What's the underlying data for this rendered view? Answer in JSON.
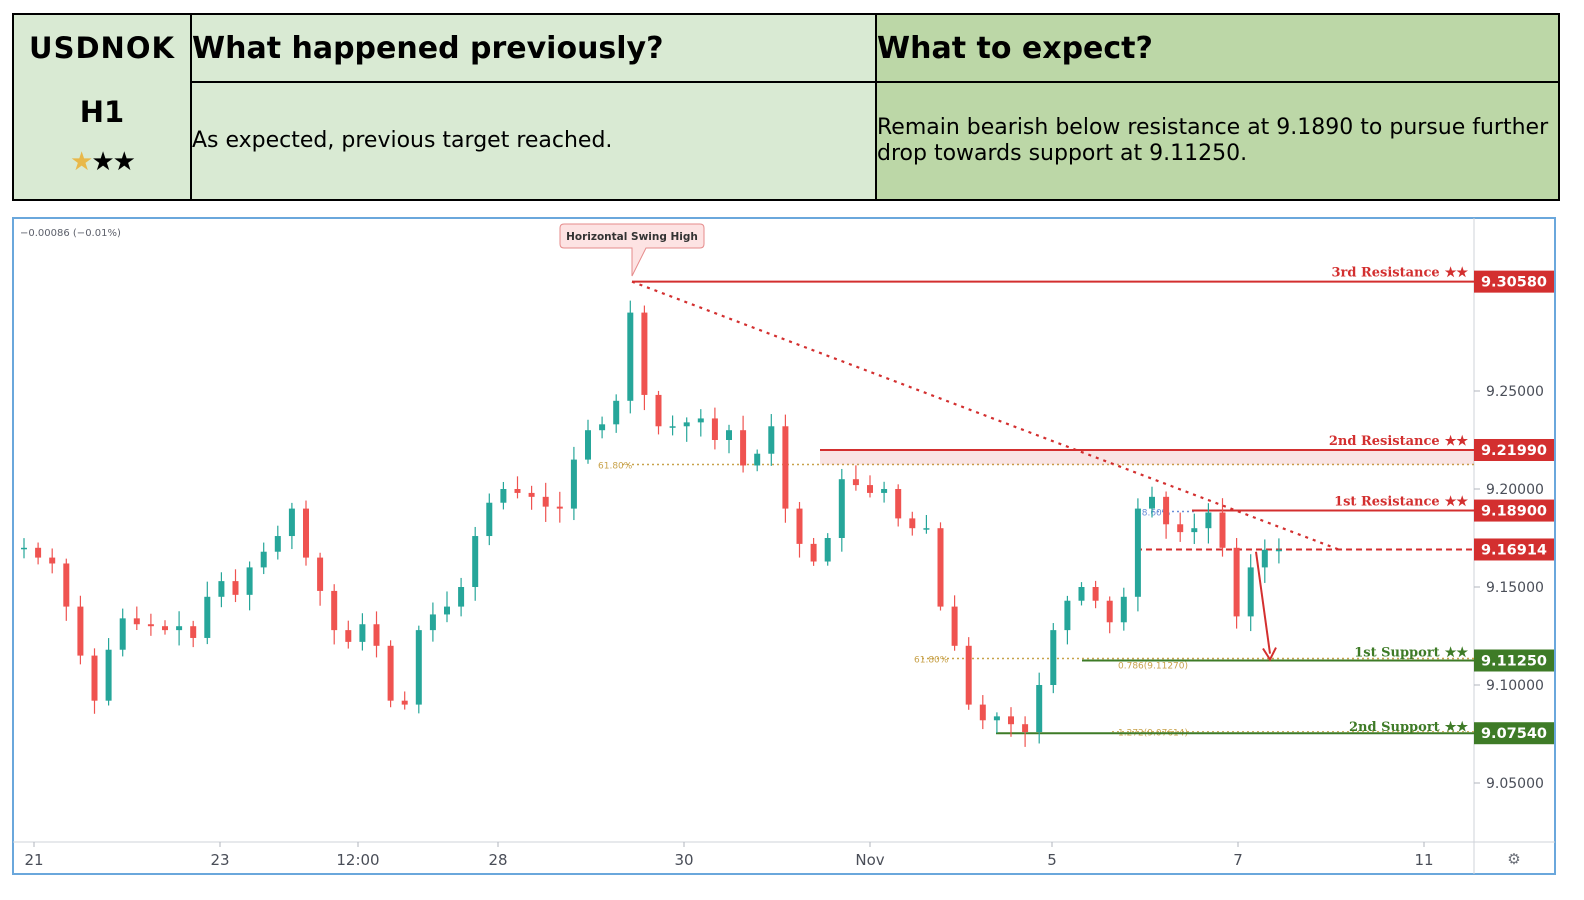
{
  "header": {
    "symbol": "USDNOK",
    "timeframe": "H1",
    "rating": {
      "filled": 1,
      "total": 3,
      "filled_color": "#e8b84a"
    },
    "previous_title": "What happened previously?",
    "previous_text": "As expected, previous target reached.",
    "expect_title": "What to expect?",
    "expect_text": "Remain bearish below resistance at 9.1890 to pursue further drop towards support at 9.11250."
  },
  "chart_data": {
    "type": "candlestick",
    "change_readout": "−0.00086 (−0.01%)",
    "ylim": [
      9.025,
      9.325
    ],
    "yticks": [
      {
        "value": 9.05,
        "label": "9.05000"
      },
      {
        "value": 9.1,
        "label": "9.10000"
      },
      {
        "value": 9.15,
        "label": "9.15000"
      },
      {
        "value": 9.2,
        "label": "9.20000"
      },
      {
        "value": 9.25,
        "label": "9.25000"
      }
    ],
    "xticks": [
      "21",
      "23",
      "12:00",
      "28",
      "30",
      "Nov",
      "5",
      "7",
      "11"
    ],
    "colors": {
      "up": "#26a69a",
      "down": "#ef5350",
      "resistance": "#d32f2f",
      "support": "#3e7b27",
      "fib": "#c8a24a",
      "fib_blue": "#6a8fd8"
    },
    "levels": [
      {
        "name": "3rd Resistance",
        "value": 9.3058,
        "label": "9.30580",
        "kind": "resistance"
      },
      {
        "name": "2nd Resistance",
        "value": 9.2199,
        "label": "9.21990",
        "kind": "resistance"
      },
      {
        "name": "1st Resistance",
        "value": 9.189,
        "label": "9.18900",
        "kind": "resistance"
      },
      {
        "name": "",
        "value": 9.16914,
        "label": "9.16914",
        "kind": "current"
      },
      {
        "name": "1st Support",
        "value": 9.1125,
        "label": "9.11250",
        "kind": "support"
      },
      {
        "name": "2nd Support",
        "value": 9.0754,
        "label": "9.07540",
        "kind": "support"
      }
    ],
    "level_stars": "★★",
    "fib_labels": {
      "f618": "61.80%",
      "f786": "78.60%",
      "f618b": "61.80%",
      "f786b": "0.786(9.11270)",
      "f1272": "1.272(9.07614)"
    },
    "annotation": "Horizontal Swing High",
    "series": [
      {
        "name": "",
        "values": [
          9.17,
          9.165,
          9.162,
          9.14,
          9.115,
          9.092,
          9.118,
          9.134,
          9.131,
          9.13,
          9.128,
          9.13,
          9.124,
          9.145,
          9.153,
          9.146,
          9.16,
          9.168,
          9.176,
          9.19,
          9.165,
          9.148,
          9.128,
          9.122,
          9.131,
          9.12,
          9.092,
          9.09,
          9.128,
          9.136,
          9.14,
          9.15,
          9.176,
          9.193,
          9.2,
          9.198,
          9.196,
          9.191,
          9.19,
          9.215,
          9.23,
          9.233,
          9.245,
          9.29,
          9.248,
          9.232,
          9.232,
          9.234,
          9.236,
          9.225,
          9.23,
          9.212,
          9.218,
          9.232,
          9.19,
          9.172,
          9.163,
          9.175,
          9.205,
          9.202,
          9.198,
          9.2,
          9.185,
          9.18,
          9.18,
          9.14,
          9.12,
          9.09,
          9.082,
          9.084,
          9.08,
          9.076,
          9.1,
          9.128,
          9.143,
          9.15,
          9.143,
          9.132,
          9.145,
          9.19,
          9.196,
          9.182,
          9.178,
          9.18,
          9.188,
          9.17,
          9.135,
          9.16,
          9.169,
          9.169
        ]
      }
    ]
  }
}
